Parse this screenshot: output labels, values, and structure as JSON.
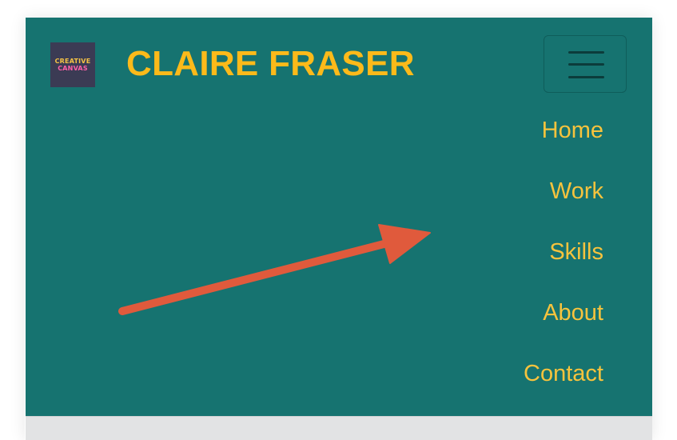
{
  "header": {
    "logo_line1": "CREATIVE",
    "logo_line2": "CANVAS",
    "title": "CLAIRE FRASER"
  },
  "menu_toggle": {
    "icon": "hamburger-icon"
  },
  "nav": {
    "items": [
      {
        "label": "Home"
      },
      {
        "label": "Work"
      },
      {
        "label": "Skills"
      },
      {
        "label": "About"
      },
      {
        "label": "Contact"
      }
    ]
  },
  "annotation": {
    "icon": "arrow-icon",
    "color": "#e05a3c"
  },
  "colors": {
    "navbar_bg": "#167370",
    "brand_title": "#fcba1a",
    "nav_link": "#f7c33d",
    "logo_bg": "#3b3b54",
    "below_area": "#e2e3e4"
  }
}
